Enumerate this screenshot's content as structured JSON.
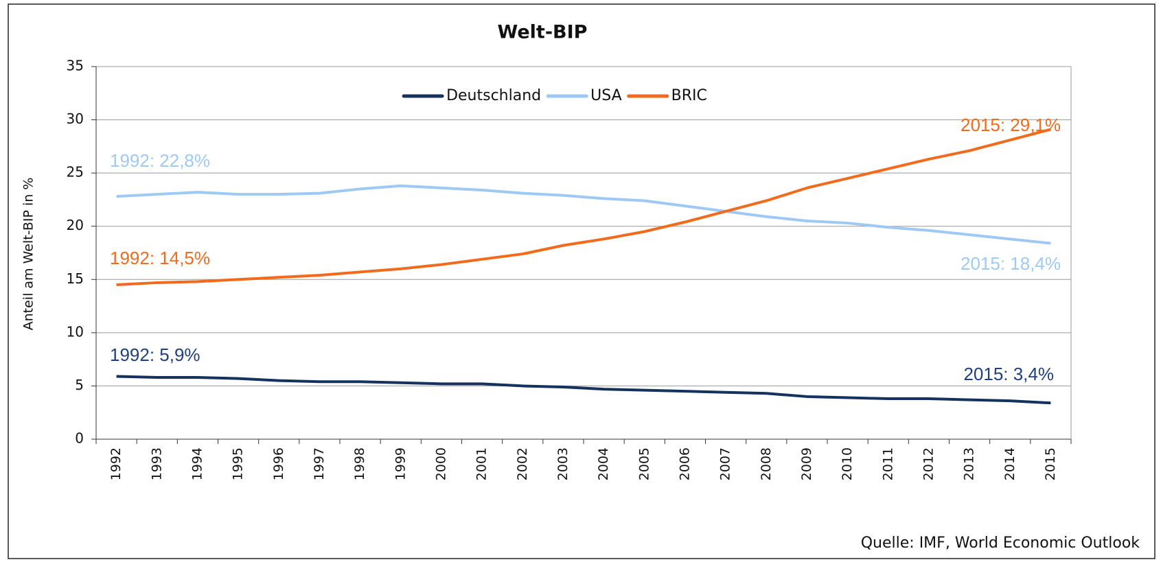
{
  "chart_data": {
    "type": "line",
    "title": "Welt-BIP",
    "y_label": "Anteil am Welt-BIP in %",
    "source": "Quelle: IMF, World Economic Outlook",
    "categories": [
      "1992",
      "1993",
      "1994",
      "1995",
      "1996",
      "1997",
      "1998",
      "1999",
      "2000",
      "2001",
      "2002",
      "2003",
      "2004",
      "2005",
      "2006",
      "2007",
      "2008",
      "2009",
      "2010",
      "2011",
      "2012",
      "2013",
      "2014",
      "2015"
    ],
    "series": [
      {
        "name": "Deutschland",
        "color": "#15325f",
        "values": [
          5.9,
          5.8,
          5.8,
          5.7,
          5.5,
          5.4,
          5.4,
          5.3,
          5.2,
          5.2,
          5.0,
          4.9,
          4.7,
          4.6,
          4.5,
          4.4,
          4.3,
          4.0,
          3.9,
          3.8,
          3.8,
          3.7,
          3.6,
          3.4
        ]
      },
      {
        "name": "USA",
        "color": "#9ec9f5",
        "values": [
          22.8,
          23.0,
          23.2,
          23.0,
          23.0,
          23.1,
          23.5,
          23.8,
          23.6,
          23.4,
          23.1,
          22.9,
          22.6,
          22.4,
          21.9,
          21.4,
          20.9,
          20.5,
          20.3,
          19.9,
          19.6,
          19.2,
          18.8,
          18.4
        ]
      },
      {
        "name": "BRIC",
        "color": "#f26b1d",
        "values": [
          14.5,
          14.7,
          14.8,
          15.0,
          15.2,
          15.4,
          15.7,
          16.0,
          16.4,
          16.9,
          17.4,
          18.2,
          18.8,
          19.5,
          20.4,
          21.4,
          22.4,
          23.6,
          24.5,
          25.4,
          26.3,
          27.1,
          28.1,
          29.1
        ]
      }
    ],
    "annotations": [
      "1992: 22,8%",
      "2015: 29,1%",
      "1992: 14,5%",
      "2015: 18,4%",
      "1992: 5,9%",
      "2015: 3,4%"
    ],
    "ylim": [
      0,
      35
    ],
    "yticks": [
      0,
      5,
      10,
      15,
      20,
      25,
      30,
      35
    ],
    "grid": true,
    "legend": "top"
  }
}
